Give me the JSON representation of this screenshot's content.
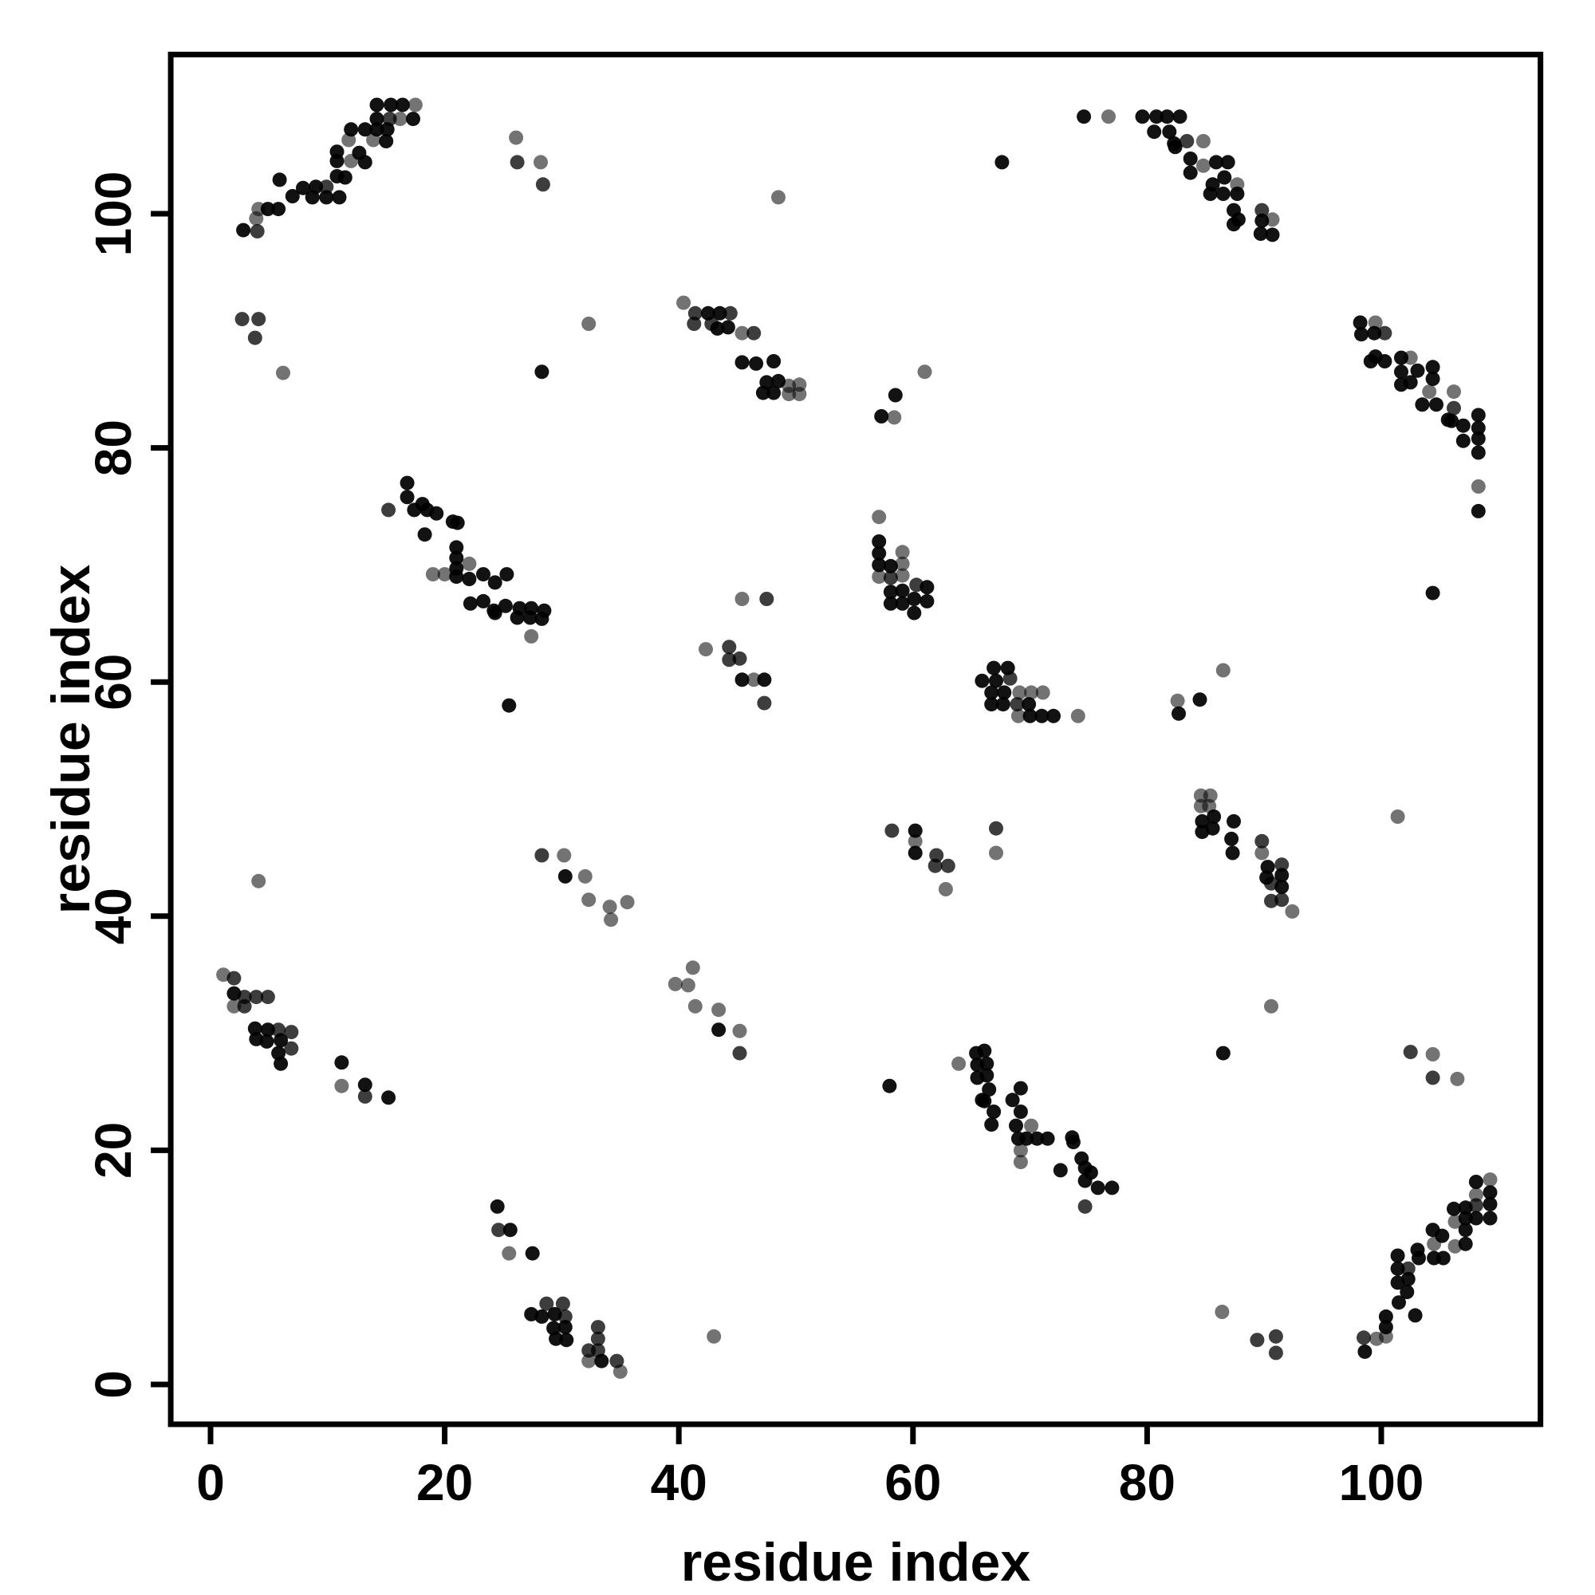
{
  "figure": {
    "background_color": "#ffffff",
    "frame_color": "#000000",
    "marker_color": "#000000"
  },
  "chart_data": {
    "type": "scatter",
    "title": "",
    "xlabel": "residue index",
    "ylabel": "residue index",
    "xlim": [
      -3.4,
      113.6
    ],
    "ylim": [
      -3.4,
      113.6
    ],
    "x_ticks": [
      0,
      20,
      40,
      60,
      80,
      100
    ],
    "y_ticks": [
      0,
      20,
      40,
      60,
      80,
      100
    ],
    "grid": false,
    "legend": "none",
    "marker": {
      "shape": "circle",
      "radius_px": 9,
      "color": "#000000",
      "alpha_levels": {
        "1": 0.93,
        "2": 0.76,
        "3": 0.55
      }
    },
    "symmetric": true,
    "point_format": [
      "x",
      "y",
      "alpha_level"
    ],
    "points_upper_triangle": [
      [
        2.8,
        98.6,
        1
      ],
      [
        4,
        98.5,
        2
      ],
      [
        3.9,
        99.6,
        3
      ],
      [
        4.1,
        100.4,
        3
      ],
      [
        4.9,
        100.4,
        1
      ],
      [
        5.8,
        100.4,
        1
      ],
      [
        7,
        101.5,
        1
      ],
      [
        7.9,
        102.2,
        1
      ],
      [
        8.7,
        101.4,
        1
      ],
      [
        9,
        102.3,
        1
      ],
      [
        9.9,
        102.3,
        2
      ],
      [
        9.9,
        101.4,
        1
      ],
      [
        11,
        101.4,
        1
      ],
      [
        5.9,
        102.9,
        1
      ],
      [
        10.8,
        103.2,
        1
      ],
      [
        11.5,
        103.1,
        1
      ],
      [
        10.8,
        104.5,
        1
      ],
      [
        12,
        104.5,
        3
      ],
      [
        13.2,
        104.4,
        1
      ],
      [
        10.8,
        105.3,
        1
      ],
      [
        12.7,
        105.2,
        1
      ],
      [
        11.8,
        106.3,
        3
      ],
      [
        13.9,
        106.3,
        3
      ],
      [
        15,
        106.2,
        1
      ],
      [
        12,
        107.2,
        1
      ],
      [
        13.2,
        107.2,
        1
      ],
      [
        14.2,
        107.2,
        1
      ],
      [
        15.1,
        107.2,
        1
      ],
      [
        14.2,
        108.1,
        1
      ],
      [
        15.3,
        108.1,
        2
      ],
      [
        16.2,
        108.1,
        3
      ],
      [
        17.3,
        108.1,
        1
      ],
      [
        14.2,
        109.3,
        1
      ],
      [
        15.4,
        109.3,
        1
      ],
      [
        16.4,
        109.3,
        1
      ],
      [
        17.5,
        109.3,
        3
      ],
      [
        2.7,
        91,
        2
      ],
      [
        4.1,
        91,
        2
      ],
      [
        3.8,
        89.4,
        2
      ],
      [
        6.2,
        86.4,
        3
      ],
      [
        4.1,
        43,
        3
      ],
      [
        26.1,
        106.5,
        3
      ],
      [
        26.2,
        104.4,
        2
      ],
      [
        28.2,
        104.4,
        3
      ],
      [
        28.4,
        102.5,
        2
      ],
      [
        28.3,
        86.5,
        1
      ],
      [
        32.3,
        90.6,
        3
      ],
      [
        40.4,
        92.4,
        3
      ],
      [
        41.4,
        91.5,
        2
      ],
      [
        42.5,
        91.5,
        1
      ],
      [
        43.5,
        91.5,
        1
      ],
      [
        44.4,
        91.5,
        2
      ],
      [
        41.3,
        90.6,
        2
      ],
      [
        42.8,
        90.6,
        2
      ],
      [
        43.3,
        90.2,
        1
      ],
      [
        44.2,
        90.3,
        1
      ],
      [
        45.4,
        89.8,
        3
      ],
      [
        46.4,
        89.8,
        2
      ],
      [
        45.4,
        87.3,
        1
      ],
      [
        46.6,
        87.2,
        1
      ],
      [
        48.1,
        87.4,
        1
      ],
      [
        47.5,
        85.6,
        1
      ],
      [
        48.5,
        85.7,
        1
      ],
      [
        49.4,
        85.3,
        3
      ],
      [
        50.3,
        85.4,
        3
      ],
      [
        47.2,
        84.7,
        1
      ],
      [
        48.1,
        84.7,
        1
      ],
      [
        49.4,
        84.6,
        3
      ],
      [
        50.3,
        84.6,
        3
      ],
      [
        48.5,
        101.4,
        3
      ],
      [
        61,
        86.5,
        3
      ],
      [
        58.5,
        84.5,
        1
      ],
      [
        57.3,
        82.7,
        1
      ],
      [
        58.4,
        82.6,
        3
      ],
      [
        67.6,
        104.4,
        1
      ],
      [
        74.6,
        108.3,
        1
      ],
      [
        76.7,
        108.3,
        3
      ],
      [
        79.6,
        108.3,
        1
      ],
      [
        80.8,
        108.3,
        1
      ],
      [
        81.7,
        108.3,
        1
      ],
      [
        82.8,
        108.3,
        1
      ],
      [
        80.6,
        107,
        1
      ],
      [
        81.9,
        107,
        1
      ],
      [
        82.3,
        106,
        1
      ],
      [
        83.4,
        106.2,
        2
      ],
      [
        84.8,
        106.2,
        3
      ],
      [
        82.4,
        105.7,
        1
      ],
      [
        83.7,
        104.7,
        1
      ],
      [
        84.8,
        104.1,
        3
      ],
      [
        85.9,
        104.4,
        1
      ],
      [
        86.9,
        104.4,
        1
      ],
      [
        83.7,
        103.5,
        1
      ],
      [
        86.6,
        103.1,
        1
      ],
      [
        85.6,
        102.5,
        1
      ],
      [
        87.7,
        102.5,
        3
      ],
      [
        85.4,
        101.7,
        1
      ],
      [
        86.5,
        101.7,
        1
      ],
      [
        87.7,
        101.7,
        1
      ],
      [
        87.4,
        100.3,
        1
      ],
      [
        89.8,
        100.3,
        2
      ],
      [
        87.8,
        99.5,
        1
      ],
      [
        90.7,
        99.5,
        3
      ],
      [
        87.4,
        99.1,
        1
      ],
      [
        89.8,
        99.4,
        1
      ],
      [
        89.7,
        98.3,
        1
      ],
      [
        90.7,
        98.2,
        1
      ],
      [
        16.8,
        77,
        1
      ],
      [
        16.8,
        75.8,
        1
      ],
      [
        15.2,
        74.7,
        2
      ],
      [
        17.4,
        74.7,
        1
      ],
      [
        18.1,
        75.2,
        1
      ],
      [
        18.5,
        74.7,
        1
      ],
      [
        19.3,
        74.4,
        1
      ],
      [
        20.7,
        73.7,
        1
      ],
      [
        21.1,
        73.6,
        1
      ],
      [
        18.3,
        72.6,
        1
      ],
      [
        21,
        71.5,
        1
      ],
      [
        21,
        70.6,
        1
      ],
      [
        21,
        69.7,
        1
      ],
      [
        22.1,
        70.1,
        3
      ],
      [
        19,
        69.2,
        3
      ],
      [
        20,
        69.2,
        3
      ],
      [
        21,
        69,
        1
      ],
      [
        22.1,
        68.8,
        1
      ],
      [
        23.3,
        69.2,
        1
      ],
      [
        24.3,
        68.5,
        1
      ],
      [
        25.3,
        69.2,
        1
      ],
      [
        22.2,
        66.7,
        1
      ],
      [
        23.3,
        66.9,
        1
      ],
      [
        24.2,
        66.1,
        1
      ],
      [
        25.2,
        66.5,
        1
      ],
      [
        26.4,
        66.3,
        1
      ],
      [
        27.4,
        66.3,
        1
      ],
      [
        28.5,
        66.1,
        1
      ],
      [
        24.3,
        65.9,
        1
      ],
      [
        26.2,
        65.5,
        1
      ],
      [
        27.3,
        65.5,
        1
      ],
      [
        28.3,
        65.4,
        1
      ],
      [
        27.4,
        63.9,
        3
      ],
      [
        25.5,
        58,
        1
      ],
      [
        45.4,
        67.1,
        3
      ],
      [
        47.5,
        67.1,
        2
      ],
      [
        42.3,
        62.8,
        3
      ],
      [
        44.3,
        63,
        2
      ],
      [
        44.3,
        61.9,
        2
      ],
      [
        45.2,
        62,
        2
      ],
      [
        45.4,
        60.2,
        1
      ],
      [
        46.4,
        60.2,
        3
      ],
      [
        47.3,
        60.2,
        1
      ],
      [
        47.3,
        58.2,
        2
      ],
      [
        61.2,
        66.9,
        1
      ],
      [
        61.2,
        68.1,
        1
      ],
      [
        60.1,
        65.9,
        1
      ],
      [
        60.1,
        67.1,
        1
      ],
      [
        60.3,
        68.3,
        2
      ],
      [
        59.1,
        66.7,
        1
      ],
      [
        59.1,
        67.8,
        1
      ],
      [
        59.1,
        69.1,
        3
      ],
      [
        59.1,
        70.1,
        3
      ],
      [
        59.1,
        71.1,
        3
      ],
      [
        58.1,
        66.7,
        1
      ],
      [
        58.1,
        67.7,
        1
      ],
      [
        58.1,
        68.9,
        2
      ],
      [
        58.1,
        69.9,
        1
      ],
      [
        57.1,
        69,
        3
      ],
      [
        57.1,
        70,
        1
      ],
      [
        57.1,
        71,
        1
      ],
      [
        57.1,
        72,
        1
      ],
      [
        57.1,
        74.1,
        3
      ],
      [
        1.1,
        35,
        3
      ],
      [
        2,
        34.7,
        2
      ],
      [
        2,
        33.4,
        1
      ],
      [
        2.9,
        33.1,
        2
      ],
      [
        3.9,
        33.1,
        2
      ],
      [
        4.9,
        33.1,
        2
      ],
      [
        2,
        32.3,
        3
      ],
      [
        2.9,
        32.3,
        2
      ],
      [
        3.8,
        30.4,
        1
      ],
      [
        4.9,
        30.3,
        1
      ],
      [
        5.8,
        30.3,
        2
      ],
      [
        6.9,
        30.1,
        2
      ],
      [
        3.9,
        29.5,
        1
      ],
      [
        4.8,
        29.3,
        1
      ],
      [
        6,
        29.4,
        1
      ],
      [
        5.8,
        28.3,
        1
      ],
      [
        6.9,
        28.7,
        2
      ],
      [
        6,
        27.4,
        1
      ],
      [
        11.2,
        27.5,
        1
      ],
      [
        11.2,
        25.5,
        3
      ],
      [
        13.2,
        25.6,
        1
      ],
      [
        13.2,
        24.6,
        2
      ],
      [
        15.2,
        24.5,
        1
      ],
      [
        28.3,
        45.2,
        2
      ],
      [
        30.2,
        45.2,
        3
      ],
      [
        30.3,
        43.4,
        1
      ],
      [
        32,
        43.4,
        3
      ],
      [
        32.3,
        41.4,
        3
      ],
      [
        34.1,
        40.8,
        3
      ],
      [
        34.2,
        39.7,
        3
      ],
      [
        35.6,
        41.2,
        3
      ]
    ]
  }
}
